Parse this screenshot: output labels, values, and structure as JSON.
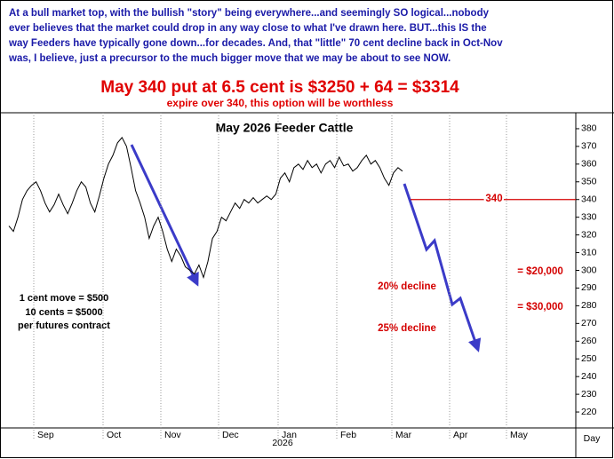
{
  "chart_data": {
    "type": "line",
    "header_lines": [
      "At a bull market top, with the bullish \"story\" being everywhere...and seemingly SO logical...nobody",
      "ever believes that the market could drop in any way close to what I've drawn here. BUT...this IS the",
      "way Feeders have typically gone down...for decades. And, that \"little\" 70 cent decline back in Oct-Nov",
      "was, I believe, just a precursor to the much bigger move that we may be about to see NOW."
    ],
    "headline": "May 340 put at 6.5 cent is $3250 + 64 = $3314",
    "subheadline": "expire over 340, this option will be worthless",
    "title": "May 2026 Feeder Cattle",
    "months": [
      "Sep",
      "Oct",
      "Nov",
      "Dec",
      "Jan",
      "Feb",
      "Mar",
      "Apr",
      "May"
    ],
    "year_label": "2026",
    "x_unit_label": "Day",
    "series": [
      {
        "color": "#000000",
        "values": [
          325,
          322,
          330,
          340,
          345,
          348,
          350,
          345,
          338,
          333,
          337,
          343,
          337,
          332,
          338,
          345,
          350,
          347,
          338,
          333,
          342,
          352,
          360,
          365,
          372,
          375,
          370,
          358,
          345,
          338,
          330,
          318,
          325,
          330,
          322,
          312,
          305,
          312,
          308,
          302,
          300,
          298,
          303,
          296,
          305,
          318,
          322,
          330,
          328,
          333,
          338,
          335,
          340,
          338,
          341,
          338,
          340,
          342,
          340,
          343,
          352,
          355,
          350,
          358,
          360,
          357,
          362,
          358,
          360,
          355,
          360,
          362,
          358,
          364,
          359,
          360,
          356,
          358,
          362,
          365,
          360,
          362,
          358,
          352,
          348,
          355,
          358,
          356
        ]
      }
    ],
    "ylim": [
      211,
      389
    ],
    "yticks": [
      220,
      230,
      240,
      250,
      260,
      270,
      280,
      290,
      300,
      310,
      320,
      330,
      340,
      350,
      360,
      370,
      380
    ],
    "hline": {
      "value": 340,
      "color": "#d40000"
    },
    "notes": [
      "1 cent move = $500",
      "10 cents = $5000",
      "per futures contract"
    ],
    "declines": [
      "20% decline",
      "25% decline"
    ],
    "dollar_notes": [
      "= $20,000",
      "= $30,000"
    ]
  }
}
